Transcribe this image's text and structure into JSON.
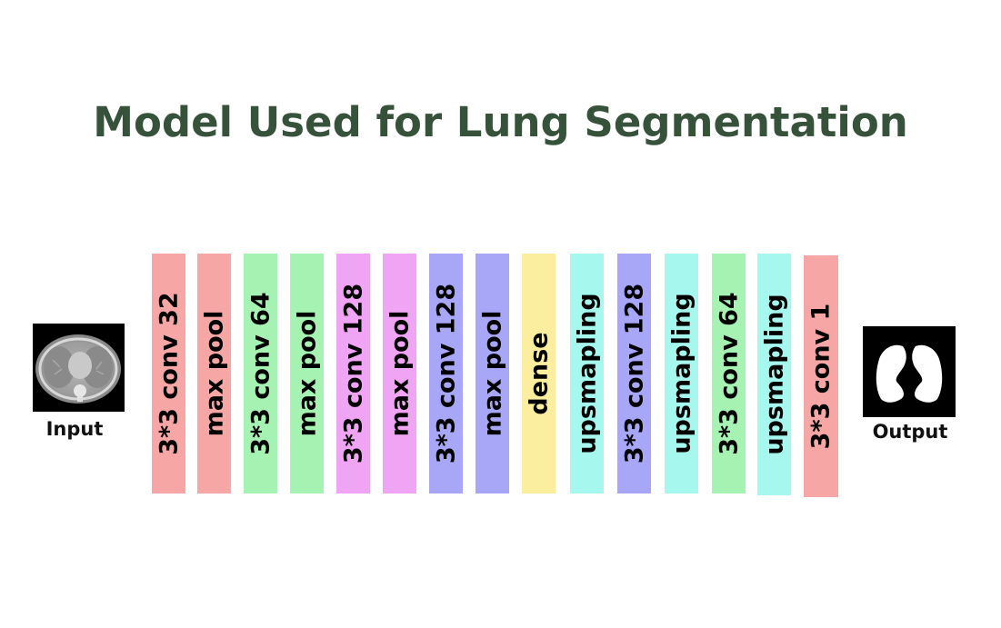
{
  "title": "Model Used for Lung Segmentation",
  "input": {
    "label": "Input"
  },
  "output": {
    "label": "Output"
  },
  "layers": [
    {
      "label": "3*3 conv 32",
      "color": "#f7a6a6"
    },
    {
      "label": "max pool",
      "color": "#f7a6a6"
    },
    {
      "label": "3*3 conv 64",
      "color": "#a6f2b3"
    },
    {
      "label": "max pool",
      "color": "#a6f2b3"
    },
    {
      "label": "3*3 conv 128",
      "color": "#efa5f3"
    },
    {
      "label": "max pool",
      "color": "#efa5f3"
    },
    {
      "label": "3*3 conv 128",
      "color": "#a8a6f7"
    },
    {
      "label": "max pool",
      "color": "#a8a6f7"
    },
    {
      "label": "dense",
      "color": "#fbee9e"
    },
    {
      "label": "upsmapling",
      "color": "#a6f7ee"
    },
    {
      "label": "3*3 conv 128",
      "color": "#a8a6f7"
    },
    {
      "label": "upsmapling",
      "color": "#a6f7ee"
    },
    {
      "label": "3*3 conv 64",
      "color": "#a6f2b3"
    },
    {
      "label": "upsmapling",
      "color": "#a6f7ee"
    },
    {
      "label": "3*3 conv 1",
      "color": "#f7a6a6"
    }
  ]
}
